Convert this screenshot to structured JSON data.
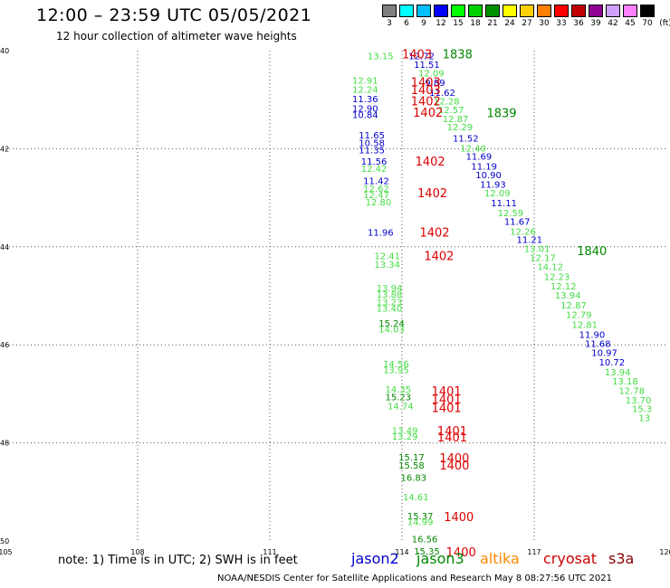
{
  "title": "12:00 – 23:59 UTC 05/05/2021",
  "subtitle": "12 hour collection of altimeter wave heights",
  "legend": {
    "unit": "(ft)",
    "colors": [
      "#808080",
      "#00ffff",
      "#00bfff",
      "#0000ff",
      "#00ff00",
      "#00d000",
      "#009000",
      "#ffff00",
      "#ffd000",
      "#ff8000",
      "#ff0000",
      "#c00000",
      "#900090",
      "#d0a0ff",
      "#ff80ff",
      "#000000"
    ],
    "labels": [
      "3",
      "6",
      "9",
      "12",
      "15",
      "18",
      "21",
      "24",
      "27",
      "30",
      "33",
      "36",
      "39",
      "42",
      "45",
      "70"
    ]
  },
  "axes": {
    "lat_labels": [
      "40",
      "42",
      "44",
      "46",
      "48",
      "50"
    ],
    "lon_labels": [
      "105",
      "108",
      "111",
      "114",
      "117",
      "120"
    ]
  },
  "footnote": "note:  1) Time is in UTC;  2) SWH is in feet",
  "satellites": [
    {
      "name": "jason2",
      "color": "#0000cc"
    },
    {
      "name": "jason3",
      "color": "#008800"
    },
    {
      "name": "altika",
      "color": "#ff8800"
    },
    {
      "name": "cryosat",
      "color": "#cc0000"
    },
    {
      "name": "s3a",
      "color": "#880000"
    }
  ],
  "credit": "NOAA/NESDIS Center for Satellite Applications and Research     May  8 08:27:56 UTC 2021",
  "observations": [
    {
      "t": "13.15",
      "c": "#44dd44",
      "lon": 113.22,
      "lat": -40.1
    },
    {
      "t": "12.72",
      "c": "#0000cc",
      "lon": 114.15,
      "lat": -40.1
    },
    {
      "t": "11.51",
      "c": "#0000cc",
      "lon": 114.27,
      "lat": -40.28
    },
    {
      "t": "12.09",
      "c": "#44dd44",
      "lon": 114.37,
      "lat": -40.45
    },
    {
      "t": "9.89",
      "c": "#0000cc",
      "lon": 114.52,
      "lat": -40.65
    },
    {
      "t": "11.62",
      "c": "#0000cc",
      "lon": 114.62,
      "lat": -40.85
    },
    {
      "t": "12.28",
      "c": "#44dd44",
      "lon": 114.72,
      "lat": -41.02
    },
    {
      "t": "12.57",
      "c": "#44dd44",
      "lon": 114.82,
      "lat": -41.2
    },
    {
      "t": "12.87",
      "c": "#44dd44",
      "lon": 114.92,
      "lat": -41.38
    },
    {
      "t": "12.29",
      "c": "#44dd44",
      "lon": 115.02,
      "lat": -41.55
    },
    {
      "t": "11.52",
      "c": "#0000cc",
      "lon": 115.15,
      "lat": -41.78
    },
    {
      "t": "12.40",
      "c": "#44dd44",
      "lon": 115.32,
      "lat": -41.98
    },
    {
      "t": "11.69",
      "c": "#0000cc",
      "lon": 115.45,
      "lat": -42.15
    },
    {
      "t": "11.19",
      "c": "#0000cc",
      "lon": 115.57,
      "lat": -42.35
    },
    {
      "t": "10.90",
      "c": "#0000cc",
      "lon": 115.67,
      "lat": -42.53
    },
    {
      "t": "11.93",
      "c": "#0000cc",
      "lon": 115.77,
      "lat": -42.72
    },
    {
      "t": "12.09",
      "c": "#44dd44",
      "lon": 115.87,
      "lat": -42.9
    },
    {
      "t": "11.11",
      "c": "#0000cc",
      "lon": 116.02,
      "lat": -43.1
    },
    {
      "t": "12.59",
      "c": "#44dd44",
      "lon": 116.17,
      "lat": -43.3
    },
    {
      "t": "11.67",
      "c": "#0000cc",
      "lon": 116.32,
      "lat": -43.48
    },
    {
      "t": "12.26",
      "c": "#44dd44",
      "lon": 116.45,
      "lat": -43.68
    },
    {
      "t": "11.21",
      "c": "#0000cc",
      "lon": 116.6,
      "lat": -43.85
    },
    {
      "t": "13.01",
      "c": "#44dd44",
      "lon": 116.77,
      "lat": -44.03
    },
    {
      "t": "12.17",
      "c": "#44dd44",
      "lon": 116.9,
      "lat": -44.22
    },
    {
      "t": "14.12",
      "c": "#44dd44",
      "lon": 117.07,
      "lat": -44.4
    },
    {
      "t": "12.23",
      "c": "#44dd44",
      "lon": 117.22,
      "lat": -44.6
    },
    {
      "t": "12.12",
      "c": "#44dd44",
      "lon": 117.37,
      "lat": -44.8
    },
    {
      "t": "13.94",
      "c": "#44dd44",
      "lon": 117.47,
      "lat": -44.98
    },
    {
      "t": "12.87",
      "c": "#44dd44",
      "lon": 117.6,
      "lat": -45.18
    },
    {
      "t": "12.79",
      "c": "#44dd44",
      "lon": 117.72,
      "lat": -45.38
    },
    {
      "t": "12.81",
      "c": "#44dd44",
      "lon": 117.85,
      "lat": -45.58
    },
    {
      "t": "11.90",
      "c": "#0000cc",
      "lon": 118.02,
      "lat": -45.78
    },
    {
      "t": "11.68",
      "c": "#0000cc",
      "lon": 118.15,
      "lat": -45.97
    },
    {
      "t": "10.97",
      "c": "#0000cc",
      "lon": 118.3,
      "lat": -46.15
    },
    {
      "t": "10.72",
      "c": "#0000cc",
      "lon": 118.47,
      "lat": -46.35
    },
    {
      "t": "13.94",
      "c": "#44dd44",
      "lon": 118.6,
      "lat": -46.55
    },
    {
      "t": "13.18",
      "c": "#44dd44",
      "lon": 118.77,
      "lat": -46.73
    },
    {
      "t": "12.78",
      "c": "#44dd44",
      "lon": 118.92,
      "lat": -46.93
    },
    {
      "t": "13.70",
      "c": "#44dd44",
      "lon": 119.07,
      "lat": -47.12
    },
    {
      "t": "15.3",
      "c": "#44dd44",
      "lon": 119.22,
      "lat": -47.3
    },
    {
      "t": "13",
      "c": "#44dd44",
      "lon": 119.37,
      "lat": -47.48
    },
    {
      "t": "12.91",
      "c": "#44dd44",
      "lon": 112.87,
      "lat": -40.6
    },
    {
      "t": "12.24",
      "c": "#44dd44",
      "lon": 112.87,
      "lat": -40.78
    },
    {
      "t": "11.36",
      "c": "#0000cc",
      "lon": 112.87,
      "lat": -40.98
    },
    {
      "t": "12.90",
      "c": "#0000cc",
      "lon": 112.87,
      "lat": -41.17
    },
    {
      "t": "10.84",
      "c": "#0000cc",
      "lon": 112.87,
      "lat": -41.3
    },
    {
      "t": "11.65",
      "c": "#0000cc",
      "lon": 113.02,
      "lat": -41.72
    },
    {
      "t": "10.58",
      "c": "#0000cc",
      "lon": 113.02,
      "lat": -41.87
    },
    {
      "t": "11.35",
      "c": "#0000cc",
      "lon": 113.02,
      "lat": -42.02
    },
    {
      "t": "11.56",
      "c": "#0000cc",
      "lon": 113.07,
      "lat": -42.25
    },
    {
      "t": "12.42",
      "c": "#44dd44",
      "lon": 113.07,
      "lat": -42.4
    },
    {
      "t": "11.42",
      "c": "#0000cc",
      "lon": 113.12,
      "lat": -42.65
    },
    {
      "t": "12.62",
      "c": "#44dd44",
      "lon": 113.12,
      "lat": -42.8
    },
    {
      "t": "12.47",
      "c": "#44dd44",
      "lon": 113.12,
      "lat": -42.93
    },
    {
      "t": "12.80",
      "c": "#44dd44",
      "lon": 113.17,
      "lat": -43.08
    },
    {
      "t": "11.96",
      "c": "#0000cc",
      "lon": 113.22,
      "lat": -43.7
    },
    {
      "t": "12.41",
      "c": "#44dd44",
      "lon": 113.37,
      "lat": -44.18
    },
    {
      "t": "13.34",
      "c": "#44dd44",
      "lon": 113.37,
      "lat": -44.35
    },
    {
      "t": "13.94",
      "c": "#44dd44",
      "lon": 113.42,
      "lat": -44.83
    },
    {
      "t": "13.88",
      "c": "#44dd44",
      "lon": 113.42,
      "lat": -44.96
    },
    {
      "t": "13.23",
      "c": "#44dd44",
      "lon": 113.42,
      "lat": -45.12
    },
    {
      "t": "13.40",
      "c": "#44dd44",
      "lon": 113.42,
      "lat": -45.25
    },
    {
      "t": "15.24",
      "c": "#008800",
      "lon": 113.47,
      "lat": -45.55
    },
    {
      "t": "14.03",
      "c": "#44dd44",
      "lon": 113.47,
      "lat": -45.67
    },
    {
      "t": "14.56",
      "c": "#44dd44",
      "lon": 113.57,
      "lat": -46.38
    },
    {
      "t": "13.95",
      "c": "#44dd44",
      "lon": 113.57,
      "lat": -46.5
    },
    {
      "t": "14.35",
      "c": "#44dd44",
      "lon": 113.62,
      "lat": -46.9
    },
    {
      "t": "15.23",
      "c": "#008800",
      "lon": 113.62,
      "lat": -47.06
    },
    {
      "t": "14.74",
      "c": "#44dd44",
      "lon": 113.67,
      "lat": -47.24
    },
    {
      "t": "13.49",
      "c": "#44dd44",
      "lon": 113.77,
      "lat": -47.74
    },
    {
      "t": "13.29",
      "c": "#44dd44",
      "lon": 113.77,
      "lat": -47.86
    },
    {
      "t": "15.17",
      "c": "#008800",
      "lon": 113.92,
      "lat": -48.28
    },
    {
      "t": "15.58",
      "c": "#008800",
      "lon": 113.92,
      "lat": -48.45
    },
    {
      "t": "16.83",
      "c": "#008800",
      "lon": 113.97,
      "lat": -48.7
    },
    {
      "t": "14.61",
      "c": "#44dd44",
      "lon": 114.02,
      "lat": -49.1
    },
    {
      "t": "15.37",
      "c": "#008800",
      "lon": 114.12,
      "lat": -49.48
    },
    {
      "t": "14.99",
      "c": "#44dd44",
      "lon": 114.12,
      "lat": -49.6
    },
    {
      "t": "16.56",
      "c": "#008800",
      "lon": 114.22,
      "lat": -49.95
    },
    {
      "t": "15.35",
      "c": "#008800",
      "lon": 114.27,
      "lat": -50.2
    }
  ],
  "time_labels": [
    {
      "t": "1838",
      "c": "#008800",
      "lon": 114.92,
      "lat": -40.06
    },
    {
      "t": "1839",
      "c": "#008800",
      "lon": 115.92,
      "lat": -41.26
    },
    {
      "t": "1840",
      "c": "#008800",
      "lon": 117.97,
      "lat": -44.08
    },
    {
      "t": "1403",
      "c": "#dd0000",
      "lon": 114.0,
      "lat": -40.06
    },
    {
      "t": "1403",
      "c": "#dd0000",
      "lon": 114.2,
      "lat": -40.64
    },
    {
      "t": "1403",
      "c": "#dd0000",
      "lon": 114.2,
      "lat": -40.79
    },
    {
      "t": "1402",
      "c": "#dd0000",
      "lon": 114.2,
      "lat": -41.02
    },
    {
      "t": "1402",
      "c": "#dd0000",
      "lon": 114.25,
      "lat": -41.25
    },
    {
      "t": "1402",
      "c": "#dd0000",
      "lon": 114.3,
      "lat": -42.25
    },
    {
      "t": "1402",
      "c": "#dd0000",
      "lon": 114.35,
      "lat": -42.9
    },
    {
      "t": "1402",
      "c": "#dd0000",
      "lon": 114.4,
      "lat": -43.7
    },
    {
      "t": "1402",
      "c": "#dd0000",
      "lon": 114.5,
      "lat": -44.18
    },
    {
      "t": "1401",
      "c": "#dd0000",
      "lon": 114.67,
      "lat": -46.94
    },
    {
      "t": "1401",
      "c": "#dd0000",
      "lon": 114.67,
      "lat": -47.1
    },
    {
      "t": "1401",
      "c": "#dd0000",
      "lon": 114.67,
      "lat": -47.28
    },
    {
      "t": "1401",
      "c": "#dd0000",
      "lon": 114.8,
      "lat": -47.75
    },
    {
      "t": "1401",
      "c": "#dd0000",
      "lon": 114.8,
      "lat": -47.88
    },
    {
      "t": "1400",
      "c": "#dd0000",
      "lon": 114.85,
      "lat": -48.3
    },
    {
      "t": "1400",
      "c": "#dd0000",
      "lon": 114.85,
      "lat": -48.45
    },
    {
      "t": "1400",
      "c": "#dd0000",
      "lon": 114.95,
      "lat": -49.5
    },
    {
      "t": "1400",
      "c": "#dd0000",
      "lon": 115.0,
      "lat": -50.22
    }
  ]
}
